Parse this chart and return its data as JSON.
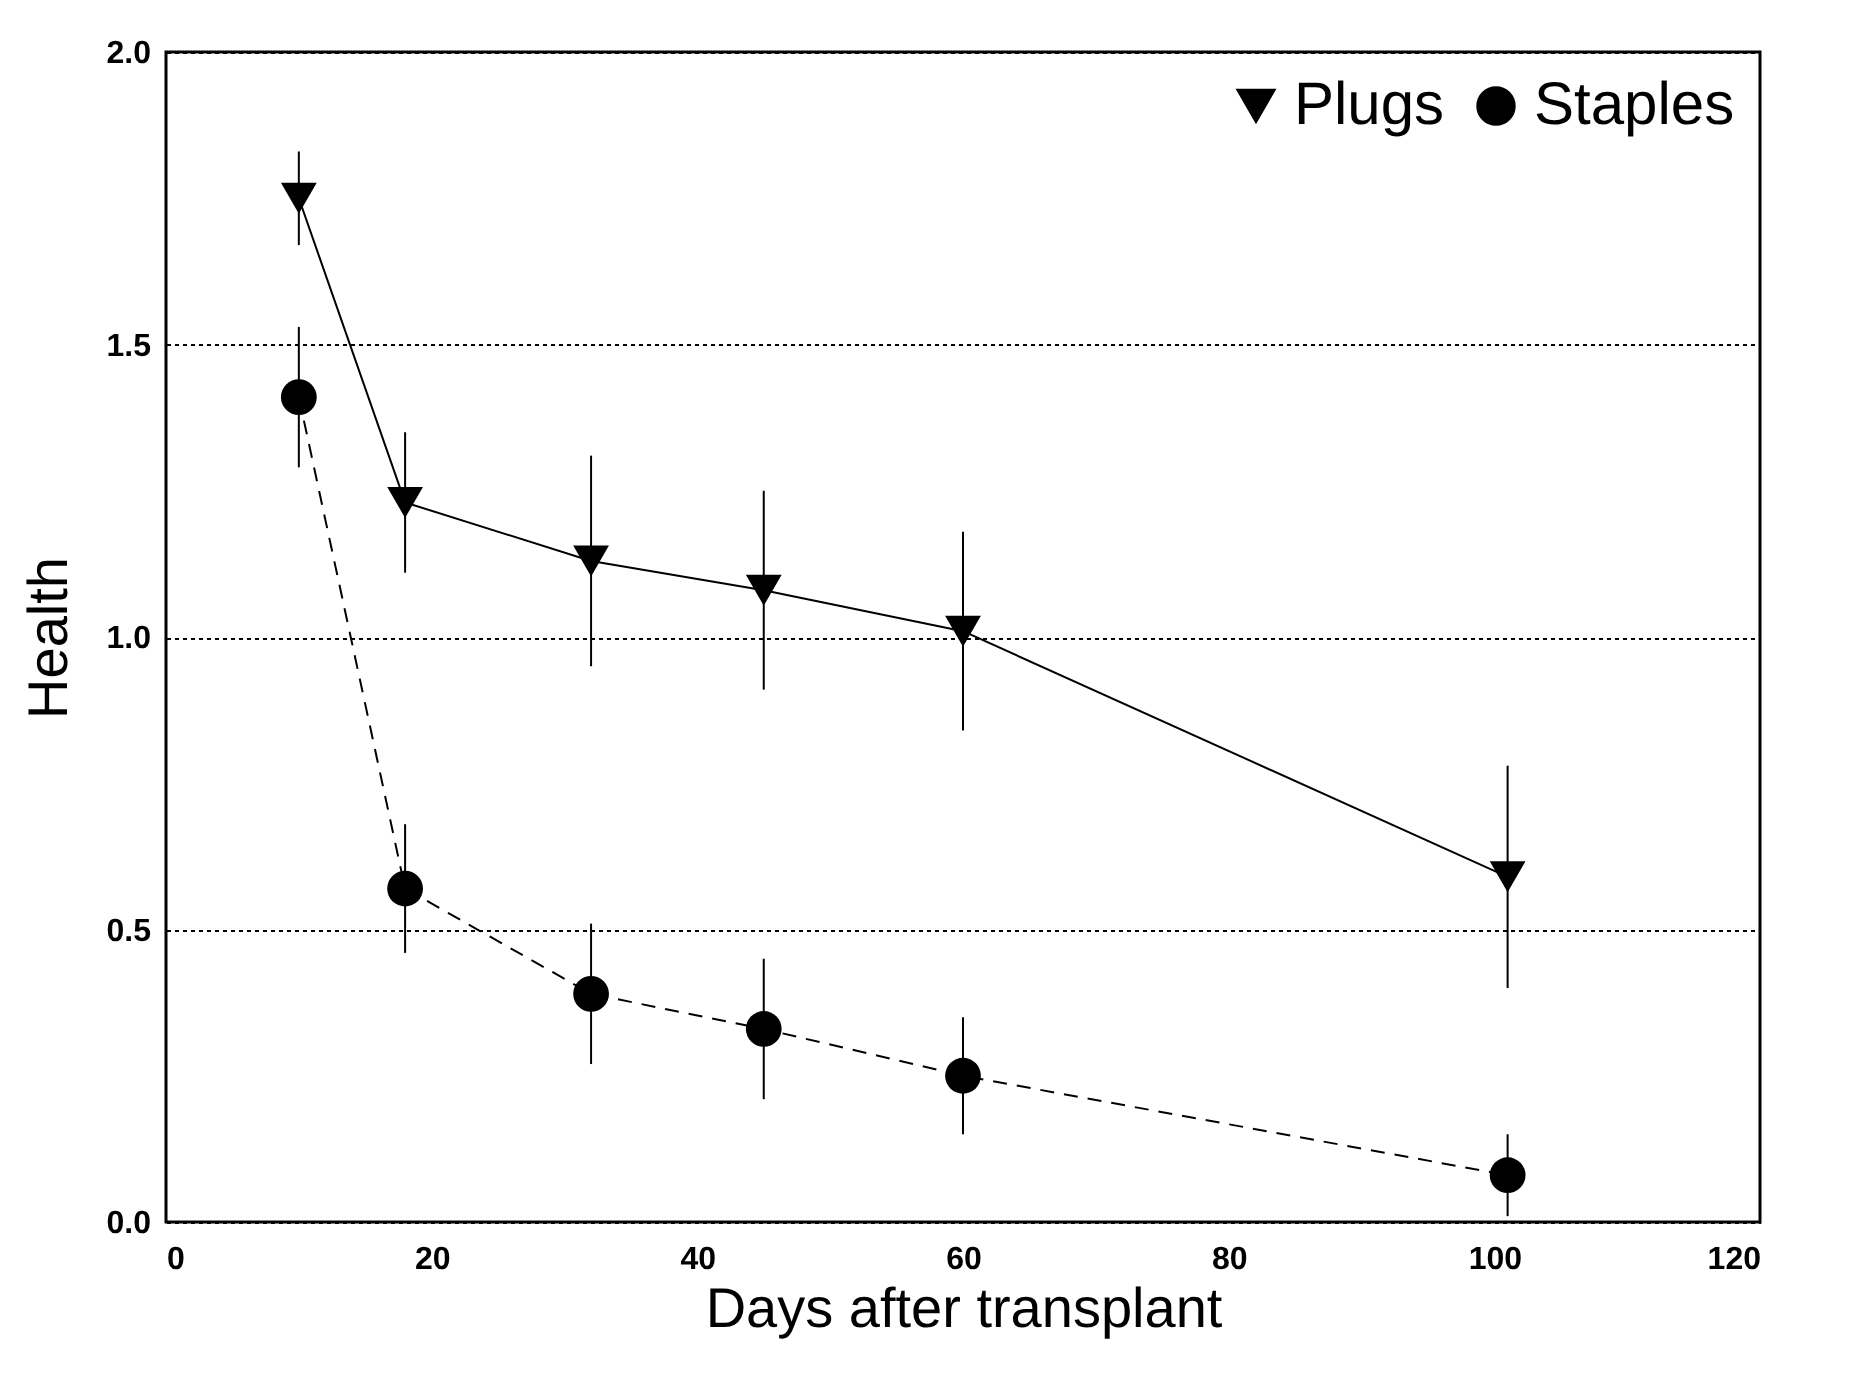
{
  "chart_data": {
    "type": "line",
    "xlabel": "Days after transplant",
    "ylabel": "Health",
    "x": [
      10,
      18,
      32,
      45,
      60,
      101
    ],
    "series": [
      {
        "name": "Plugs",
        "color": "#000000",
        "marker": "triangle-down",
        "line_style": "solid",
        "values": [
          1.75,
          1.23,
          1.13,
          1.08,
          1.01,
          0.59
        ],
        "errors": [
          0.08,
          0.12,
          0.18,
          0.17,
          0.17,
          0.19
        ]
      },
      {
        "name": "Staples",
        "color": "#000000",
        "marker": "circle",
        "line_style": "dashed",
        "values": [
          1.41,
          0.57,
          0.39,
          0.33,
          0.25,
          0.08
        ],
        "errors": [
          0.12,
          0.11,
          0.12,
          0.12,
          0.1,
          0.07
        ]
      }
    ],
    "xlim": [
      0,
      120
    ],
    "xticks": [
      0,
      20,
      40,
      60,
      80,
      100,
      120
    ],
    "ylim": [
      0,
      2
    ],
    "yticks": [
      {
        "value": 0,
        "label": "0.0"
      },
      {
        "value": 0.5,
        "label": "0.5"
      },
      {
        "value": 1,
        "label": "1.0"
      },
      {
        "value": 1.5,
        "label": "1.5"
      },
      {
        "value": 2,
        "label": "2.0"
      }
    ],
    "grid": "y",
    "legend": "top right"
  }
}
